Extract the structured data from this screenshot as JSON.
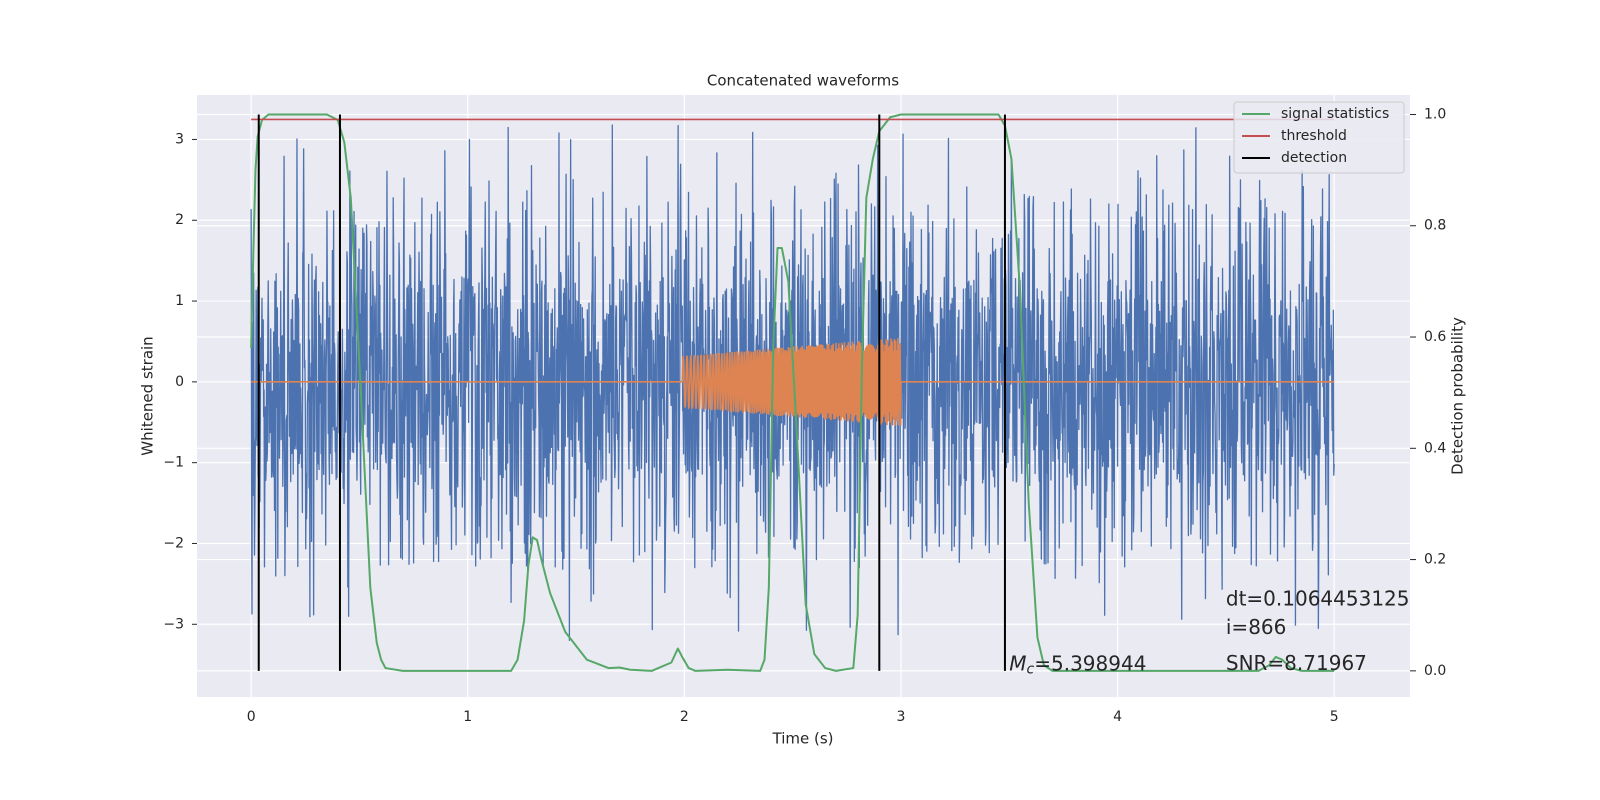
{
  "chart_data": {
    "type": "line",
    "title": "Concatenated waveforms",
    "xlabel": "Time (s)",
    "ylabel_left": "Whitened strain",
    "ylabel_right": "Detection probability",
    "xlim": [
      -0.25,
      5.35
    ],
    "ylim_left": [
      -3.9,
      3.55
    ],
    "ylim_right": [
      -0.047,
      1.035
    ],
    "x_ticks": [
      "0",
      "1",
      "2",
      "3",
      "4",
      "5"
    ],
    "y_left_ticks": [
      "−3",
      "−2",
      "−1",
      "0",
      "1",
      "2",
      "3"
    ],
    "y_right_ticks": [
      "0.0",
      "0.2",
      "0.4",
      "0.6",
      "0.8",
      "1.0"
    ],
    "grid": true,
    "legend_position": "upper right",
    "legend": [
      {
        "label": "signal statistics",
        "color": "#55a868"
      },
      {
        "label": "threshold",
        "color": "#c44e52"
      },
      {
        "label": "detection",
        "color": "#000000"
      }
    ],
    "series": [
      {
        "name": "whitened strain noise",
        "axis": "left",
        "color": "#4c72b0",
        "x_range": [
          0,
          5
        ],
        "envelope_typical": 2.3,
        "envelope_peak": 3.2
      },
      {
        "name": "injected chirp",
        "axis": "left",
        "color": "#dd8452",
        "x_range": [
          1.99,
          3.0
        ],
        "amplitude_start": 0.32,
        "amplitude_end": 0.55
      },
      {
        "name": "signal statistics",
        "axis": "right",
        "color": "#55a868",
        "points": [
          [
            0.0,
            0.58
          ],
          [
            0.01,
            0.75
          ],
          [
            0.02,
            0.9
          ],
          [
            0.03,
            0.96
          ],
          [
            0.05,
            0.99
          ],
          [
            0.08,
            1.0
          ],
          [
            0.35,
            1.0
          ],
          [
            0.4,
            0.99
          ],
          [
            0.43,
            0.95
          ],
          [
            0.46,
            0.85
          ],
          [
            0.5,
            0.55
          ],
          [
            0.55,
            0.15
          ],
          [
            0.58,
            0.05
          ],
          [
            0.6,
            0.02
          ],
          [
            0.62,
            0.005
          ],
          [
            0.7,
            0.0
          ],
          [
            1.2,
            0.0
          ],
          [
            1.23,
            0.02
          ],
          [
            1.26,
            0.09
          ],
          [
            1.28,
            0.19
          ],
          [
            1.3,
            0.24
          ],
          [
            1.32,
            0.235
          ],
          [
            1.34,
            0.2
          ],
          [
            1.38,
            0.14
          ],
          [
            1.45,
            0.07
          ],
          [
            1.55,
            0.02
          ],
          [
            1.65,
            0.005
          ],
          [
            1.7,
            0.006
          ],
          [
            1.75,
            0.002
          ],
          [
            1.85,
            0.0
          ],
          [
            1.94,
            0.015
          ],
          [
            1.97,
            0.04
          ],
          [
            1.99,
            0.025
          ],
          [
            2.02,
            0.005
          ],
          [
            2.05,
            0.0
          ],
          [
            2.2,
            0.002
          ],
          [
            2.35,
            0.0
          ],
          [
            2.37,
            0.02
          ],
          [
            2.39,
            0.15
          ],
          [
            2.41,
            0.58
          ],
          [
            2.43,
            0.76
          ],
          [
            2.45,
            0.76
          ],
          [
            2.48,
            0.7
          ],
          [
            2.52,
            0.42
          ],
          [
            2.56,
            0.12
          ],
          [
            2.6,
            0.03
          ],
          [
            2.65,
            0.005
          ],
          [
            2.7,
            0.0
          ],
          [
            2.78,
            0.005
          ],
          [
            2.8,
            0.1
          ],
          [
            2.82,
            0.55
          ],
          [
            2.84,
            0.85
          ],
          [
            2.87,
            0.92
          ],
          [
            2.9,
            0.97
          ],
          [
            2.95,
            0.995
          ],
          [
            3.0,
            1.0
          ],
          [
            3.45,
            1.0
          ],
          [
            3.48,
            0.98
          ],
          [
            3.51,
            0.92
          ],
          [
            3.55,
            0.68
          ],
          [
            3.59,
            0.3
          ],
          [
            3.63,
            0.06
          ],
          [
            3.66,
            0.01
          ],
          [
            3.7,
            0.0
          ],
          [
            4.65,
            0.0
          ],
          [
            4.7,
            0.01
          ],
          [
            4.73,
            0.025
          ],
          [
            4.76,
            0.02
          ],
          [
            4.8,
            0.005
          ],
          [
            4.85,
            0.0
          ],
          [
            5.0,
            0.0
          ]
        ]
      },
      {
        "name": "threshold",
        "axis": "right",
        "color": "#c44e52",
        "value": 0.991,
        "x_range": [
          0,
          5
        ]
      },
      {
        "name": "detection",
        "axis": "right",
        "color": "#000000",
        "x": [
          0.035,
          0.41,
          2.9,
          3.48
        ],
        "y_range": [
          0,
          1.0
        ]
      }
    ],
    "annotations": [
      {
        "x": 3.5,
        "y": -3.5,
        "mc_symbol": "M",
        "mc_subscript": "c",
        "mc_value": "=5.398944"
      },
      {
        "x": 4.5,
        "y": -2.7,
        "text": "dt=0.1064453125"
      },
      {
        "x": 4.5,
        "y": -3.05,
        "text": " i=866"
      },
      {
        "x": 4.5,
        "y": -3.5,
        "text": "SNR=8.71967"
      }
    ]
  }
}
